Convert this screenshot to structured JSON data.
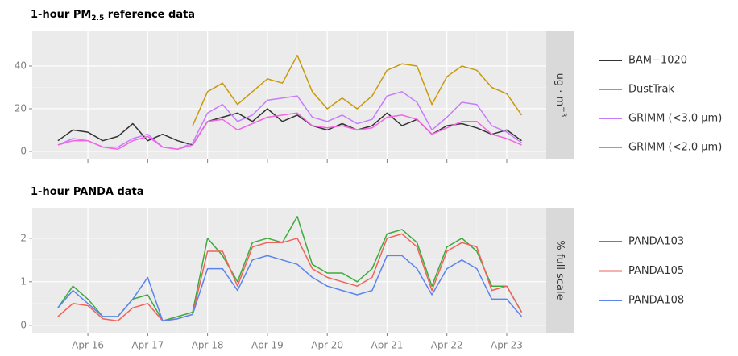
{
  "chart_data": [
    {
      "type": "line",
      "title": [
        "1-hour PM",
        "2.5",
        " reference data"
      ],
      "strip_label": [
        "ug · m",
        "−3"
      ],
      "x": [
        15.5,
        15.75,
        16,
        16.25,
        16.5,
        16.75,
        17,
        17.25,
        17.5,
        17.75,
        18,
        18.25,
        18.5,
        18.75,
        19,
        19.25,
        19.5,
        19.75,
        20,
        20.25,
        20.5,
        20.75,
        21,
        21.25,
        21.5,
        21.75,
        22,
        22.25,
        22.5,
        22.75,
        23,
        23.25
      ],
      "xlim": [
        15.07,
        23.66
      ],
      "xticks": [
        16,
        17,
        18,
        19,
        20,
        21,
        22,
        23
      ],
      "ylim": [
        -3.8,
        56.6
      ],
      "yticks": [
        0,
        20,
        40
      ],
      "grid": true,
      "series": [
        {
          "name": "BAM−1020",
          "color": "#333333",
          "values": [
            5,
            10,
            9,
            5,
            7,
            13,
            5,
            8,
            5,
            3,
            14,
            16,
            18,
            14,
            20,
            14,
            17,
            12,
            10,
            13,
            10,
            12,
            18,
            12,
            15,
            8,
            12,
            13,
            11,
            8,
            10,
            5
          ]
        },
        {
          "name": "DustTrak",
          "color": "#c99a0a",
          "values": [
            null,
            null,
            null,
            null,
            null,
            null,
            null,
            null,
            null,
            12,
            28,
            32,
            22,
            28,
            34,
            32,
            45,
            28,
            20,
            25,
            20,
            26,
            38,
            41,
            40,
            22,
            35,
            40,
            38,
            30,
            27,
            17
          ]
        },
        {
          "name": "GRIMM (<3.0 µm)",
          "color": "#c77cff",
          "values": [
            3,
            6,
            5,
            2,
            2,
            6,
            8,
            2,
            1,
            4,
            18,
            22,
            14,
            17,
            24,
            25,
            26,
            16,
            14,
            17,
            13,
            15,
            26,
            28,
            23,
            10,
            16,
            23,
            22,
            12,
            9,
            4
          ]
        },
        {
          "name": "GRIMM (<2.0 µm)",
          "color": "#f564e3",
          "values": [
            3,
            5,
            5,
            2,
            1,
            5,
            7,
            2,
            1,
            3,
            14,
            15,
            10,
            13,
            16,
            17,
            18,
            12,
            11,
            12,
            10,
            11,
            16,
            17,
            15,
            8,
            11,
            14,
            14,
            8,
            6,
            3
          ]
        }
      ]
    },
    {
      "type": "line",
      "title": [
        "1-hour PANDA data"
      ],
      "strip_label": [
        "% full scale"
      ],
      "x": [
        15.5,
        15.75,
        16,
        16.25,
        16.5,
        16.75,
        17,
        17.25,
        17.5,
        17.75,
        18,
        18.25,
        18.5,
        18.75,
        19,
        19.25,
        19.5,
        19.75,
        20,
        20.25,
        20.5,
        20.75,
        21,
        21.25,
        21.5,
        21.75,
        22,
        22.25,
        22.5,
        22.75,
        23,
        23.25
      ],
      "xlim": [
        15.07,
        23.66
      ],
      "xticks": [
        {
          "value": 16,
          "label": "Apr 16"
        },
        {
          "value": 17,
          "label": "Apr 17"
        },
        {
          "value": 18,
          "label": "Apr 18"
        },
        {
          "value": 19,
          "label": "Apr 19"
        },
        {
          "value": 20,
          "label": "Apr 20"
        },
        {
          "value": 21,
          "label": "Apr 21"
        },
        {
          "value": 22,
          "label": "Apr 22"
        },
        {
          "value": 23,
          "label": "Apr 23"
        }
      ],
      "ylim": [
        -0.17,
        2.7
      ],
      "yticks": [
        0,
        1,
        2
      ],
      "grid": true,
      "series": [
        {
          "name": "PANDA103",
          "color": "#3cab3c",
          "values": [
            0.4,
            0.9,
            0.6,
            0.2,
            0.2,
            0.6,
            0.7,
            0.1,
            0.2,
            0.3,
            2.0,
            1.6,
            1.0,
            1.9,
            2.0,
            1.9,
            2.5,
            1.4,
            1.2,
            1.2,
            1.0,
            1.3,
            2.1,
            2.2,
            1.9,
            0.9,
            1.8,
            2.0,
            1.7,
            0.9,
            0.9,
            0.3
          ]
        },
        {
          "name": "PANDA105",
          "color": "#f0625a",
          "values": [
            0.2,
            0.5,
            0.45,
            0.15,
            0.1,
            0.4,
            0.5,
            0.1,
            0.15,
            0.25,
            1.7,
            1.7,
            0.9,
            1.8,
            1.9,
            1.9,
            2.0,
            1.3,
            1.1,
            1.0,
            0.9,
            1.1,
            2.0,
            2.1,
            1.8,
            0.8,
            1.7,
            1.9,
            1.8,
            0.8,
            0.9,
            0.3
          ]
        },
        {
          "name": "PANDA108",
          "color": "#5b84f0",
          "values": [
            0.4,
            0.8,
            0.5,
            0.2,
            0.2,
            0.6,
            1.1,
            0.1,
            0.15,
            0.25,
            1.3,
            1.3,
            0.8,
            1.5,
            1.6,
            1.5,
            1.4,
            1.1,
            0.9,
            0.8,
            0.7,
            0.8,
            1.6,
            1.6,
            1.3,
            0.7,
            1.3,
            1.5,
            1.3,
            0.6,
            0.6,
            0.2
          ]
        }
      ]
    }
  ]
}
